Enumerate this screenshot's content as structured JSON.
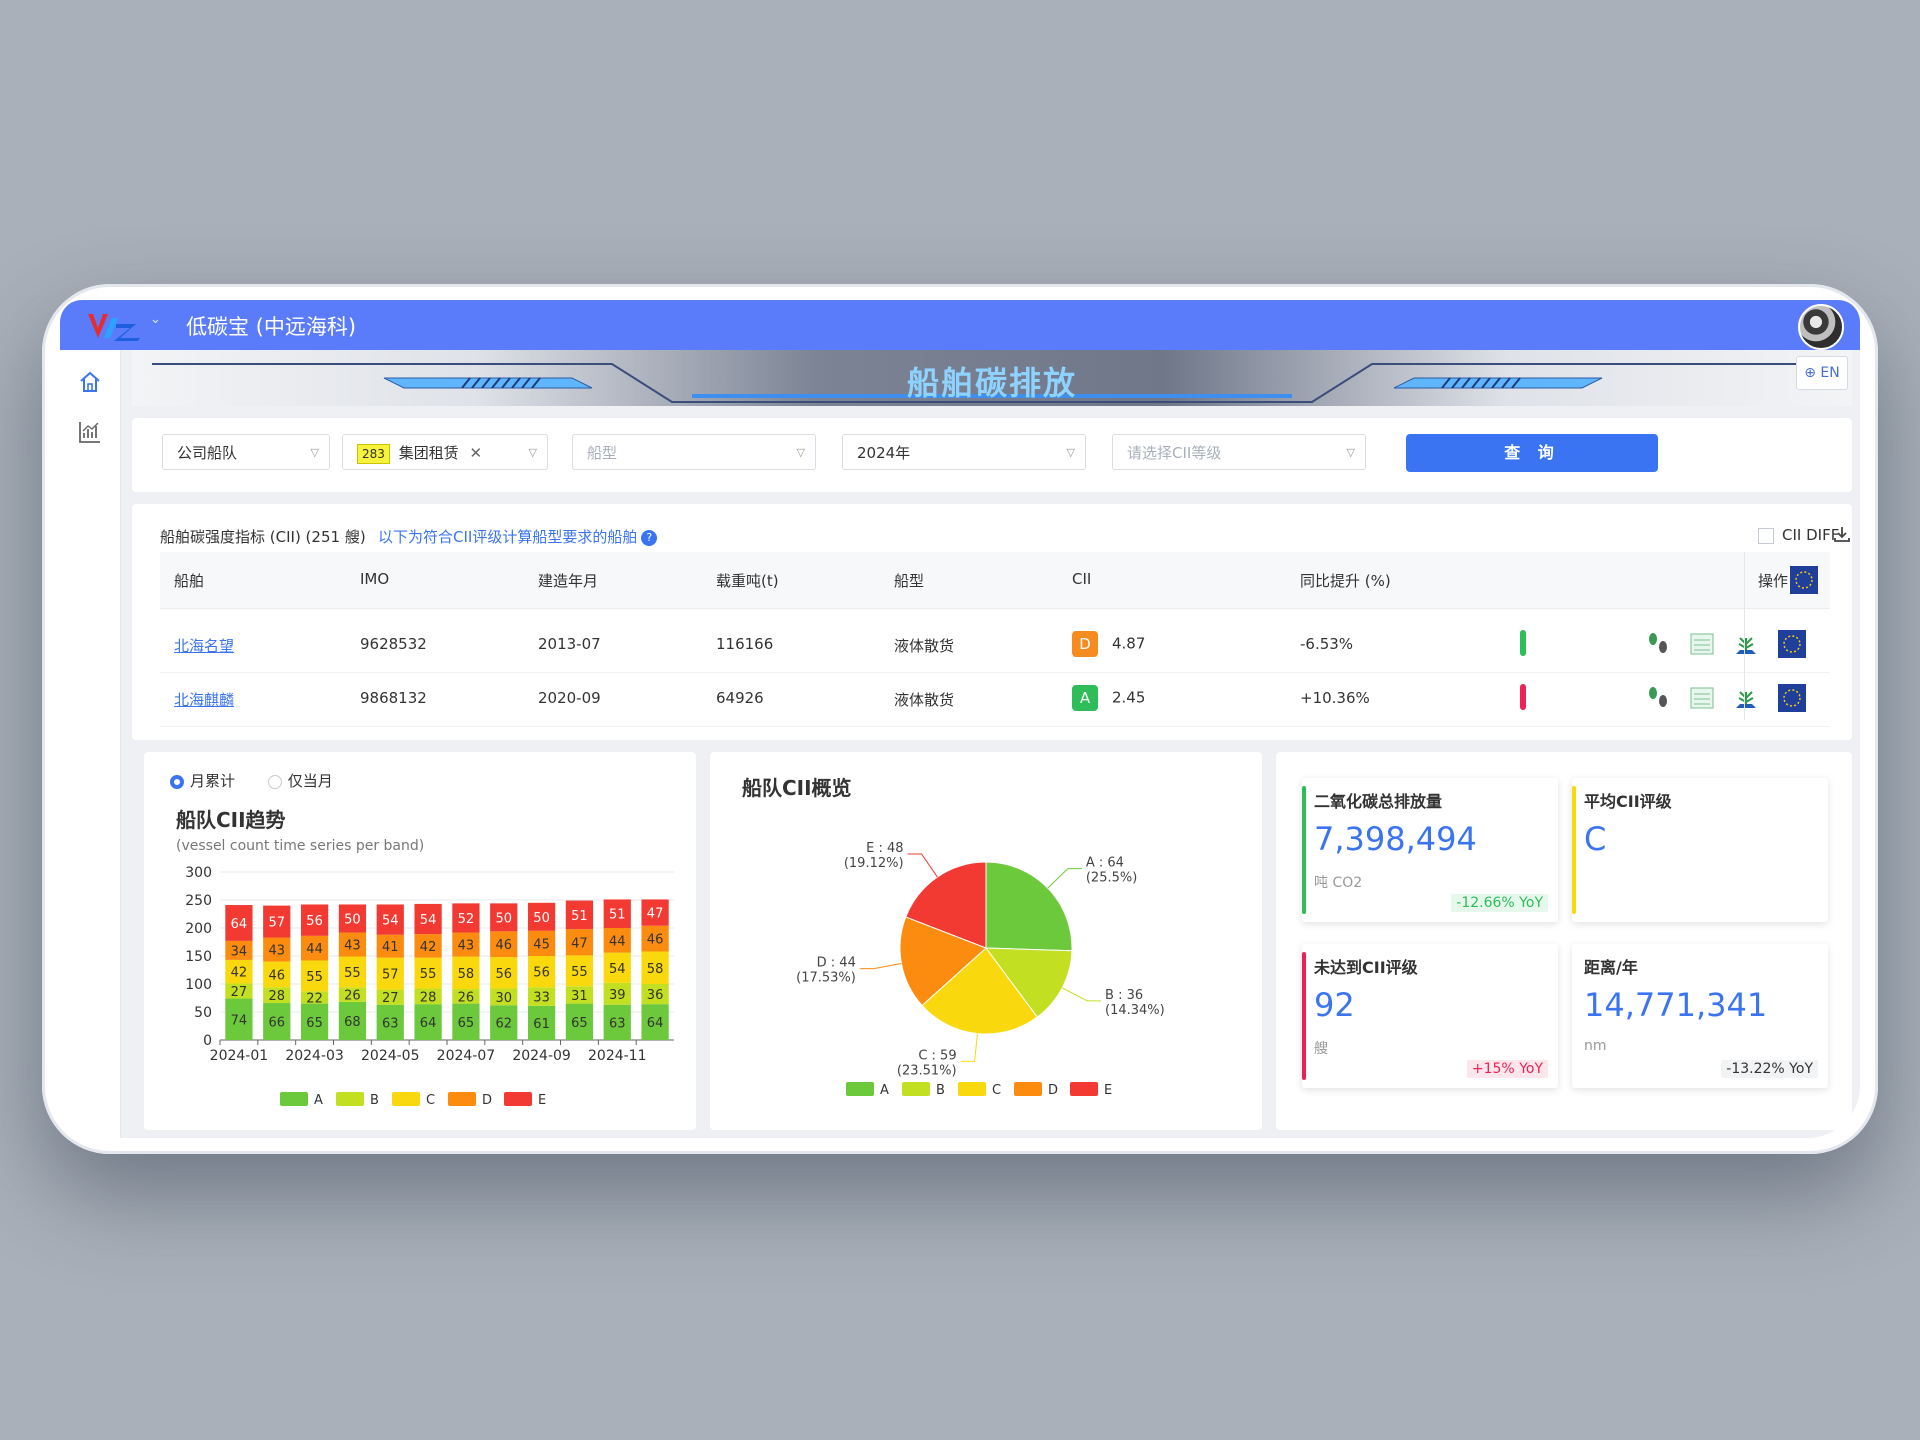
{
  "app": {
    "title": "低碳宝 (中远海科)"
  },
  "banner": {
    "title": "船舶碳排放",
    "lang_label": "EN"
  },
  "filters": {
    "fleet_type": "公司船队",
    "fleet_tag_num": "283",
    "fleet_tag_label": "集团租赁",
    "ship_type_placeholder": "船型",
    "year": "2024年",
    "cii_placeholder": "请选择CII等级",
    "query_label": "查 询"
  },
  "table": {
    "title": "船舶碳强度指标 (CII) (251 艘)",
    "note": "以下为符合CII评级计算船型要求的船舶",
    "cii_diff_label": "CII DIFF",
    "headers": {
      "ship": "船舶",
      "imo": "IMO",
      "build": "建造年月",
      "dwt": "载重吨(t)",
      "type": "船型",
      "cii": "CII",
      "yoy": "同比提升 (%)",
      "ops": "操作"
    },
    "rows": [
      {
        "ship": "北海名望",
        "imo": "9628532",
        "build": "2013-07",
        "dwt": "116166",
        "type": "液体散货",
        "grade": "D",
        "grade_color": "#f68b1f",
        "cii": "4.87",
        "yoy": "-6.53%",
        "trend_color": "#2ebd59"
      },
      {
        "ship": "北海麒麟",
        "imo": "9868132",
        "build": "2020-09",
        "dwt": "64926",
        "type": "液体散货",
        "grade": "A",
        "grade_color": "#2ebd59",
        "cii": "2.45",
        "yoy": "+10.36%",
        "trend_color": "#ee2355"
      }
    ]
  },
  "trend": {
    "mode_cumulative": "月累计",
    "mode_current": "仅当月",
    "title": "船队CII趋势",
    "subtitle": "(vessel count time series per band)"
  },
  "pie_card": {
    "title": "船队CII概览"
  },
  "chart_data": [
    {
      "type": "bar",
      "stacked": true,
      "categories": [
        "2024-01",
        "2024-02",
        "2024-03",
        "2024-04",
        "2024-05",
        "2024-06",
        "2024-07",
        "2024-08",
        "2024-09",
        "2024-10",
        "2024-11",
        "2024-12"
      ],
      "x_tick_labels": [
        "2024-01",
        "2024-03",
        "2024-05",
        "2024-07",
        "2024-09",
        "2024-11"
      ],
      "ylim": [
        0,
        300
      ],
      "y_ticks": [
        0,
        50,
        100,
        150,
        200,
        250,
        300
      ],
      "grid": true,
      "legend_position": "bottom",
      "series": [
        {
          "name": "A",
          "color": "#6cc93b",
          "values": [
            74,
            66,
            65,
            68,
            63,
            64,
            65,
            62,
            61,
            65,
            63,
            64
          ]
        },
        {
          "name": "B",
          "color": "#c3df21",
          "values": [
            27,
            28,
            22,
            26,
            27,
            28,
            26,
            30,
            33,
            31,
            39,
            36
          ]
        },
        {
          "name": "C",
          "color": "#f9d90e",
          "values": [
            42,
            46,
            55,
            55,
            57,
            55,
            58,
            56,
            56,
            55,
            54,
            58
          ]
        },
        {
          "name": "D",
          "color": "#fb8c10",
          "values": [
            34,
            43,
            44,
            43,
            41,
            42,
            43,
            46,
            45,
            47,
            44,
            46
          ]
        },
        {
          "name": "E",
          "color": "#f23a32",
          "values": [
            64,
            57,
            56,
            50,
            54,
            54,
            52,
            50,
            50,
            51,
            51,
            47
          ]
        }
      ]
    },
    {
      "type": "pie",
      "legend_position": "bottom",
      "slices": [
        {
          "name": "A",
          "value": 64,
          "percent": "25.5%",
          "color": "#6cc93b"
        },
        {
          "name": "B",
          "value": 36,
          "percent": "14.34%",
          "color": "#c3df21"
        },
        {
          "name": "C",
          "value": 59,
          "percent": "23.51%",
          "color": "#f9d90e"
        },
        {
          "name": "D",
          "value": 44,
          "percent": "17.53%",
          "color": "#fb8c10"
        },
        {
          "name": "E",
          "value": 48,
          "percent": "19.12%",
          "color": "#f23a32"
        }
      ]
    }
  ],
  "kpis": [
    {
      "title": "二氧化碳总排放量",
      "value": "7,398,494",
      "unit": "吨 CO2",
      "change": "-12.66% YoY",
      "accent": "#2ebd59",
      "change_color": "#2ebd59",
      "change_bg": "#e6f8ec"
    },
    {
      "title": "平均CII评级",
      "value": "C",
      "unit": "",
      "change": "",
      "accent": "#f9d90e",
      "change_color": "#333333",
      "change_bg": "#ffffff"
    },
    {
      "title": "未达到CII评级",
      "value": "92",
      "unit": "艘",
      "change": "+15% YoY",
      "accent": "#ee2355",
      "change_color": "#ee2355",
      "change_bg": "#fde6ec"
    },
    {
      "title": "距离/年",
      "value": "14,771,341",
      "unit": "nm",
      "change": "-13.22% YoY",
      "accent": "#ffffff",
      "change_color": "#333333",
      "change_bg": "#f2f3f5"
    }
  ]
}
